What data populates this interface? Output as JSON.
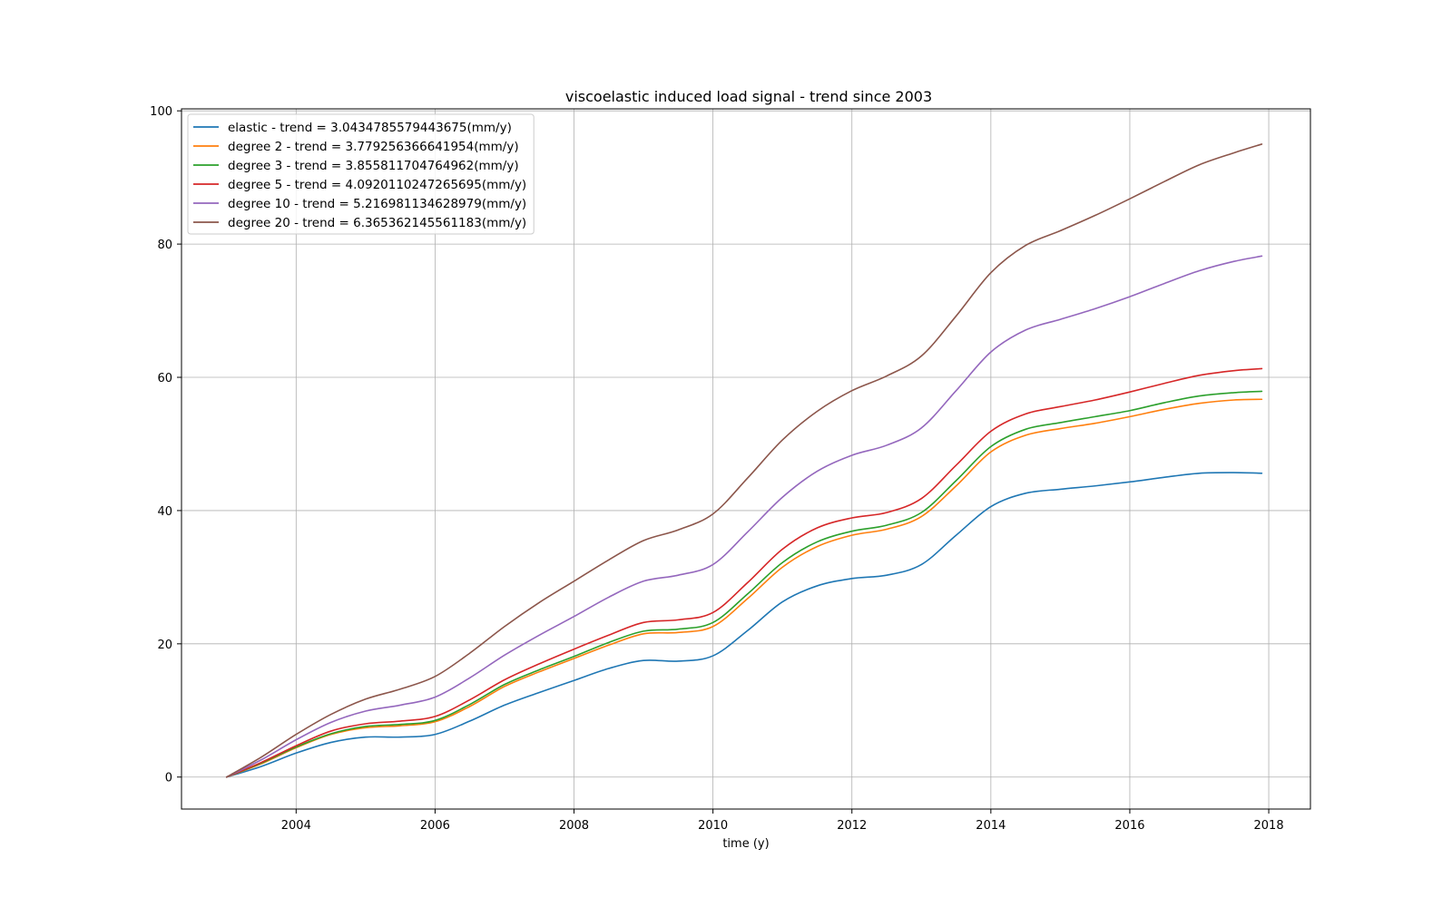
{
  "chart_data": {
    "type": "line",
    "title": "viscoelastic induced load signal - trend since 2003",
    "xlabel": "time (y)",
    "ylabel": "",
    "xlim": [
      2002.35,
      2018.6
    ],
    "ylim": [
      -4.8,
      100.3
    ],
    "xticks": [
      2004,
      2006,
      2008,
      2010,
      2012,
      2014,
      2016,
      2018
    ],
    "yticks": [
      0,
      20,
      40,
      60,
      80,
      100
    ],
    "grid": true,
    "legend_position": "top-left",
    "x": [
      2003.0,
      2003.5,
      2004.0,
      2004.5,
      2005.0,
      2005.5,
      2006.0,
      2006.5,
      2007.0,
      2007.5,
      2008.0,
      2008.5,
      2009.0,
      2009.5,
      2010.0,
      2010.5,
      2011.0,
      2011.5,
      2012.0,
      2012.5,
      2013.0,
      2013.5,
      2014.0,
      2014.5,
      2015.0,
      2015.5,
      2016.0,
      2016.5,
      2017.0,
      2017.5,
      2017.9
    ],
    "series": [
      {
        "name": "elastic - trend = 3.0434785579443675(mm/y)",
        "color": "#1f77b4",
        "values": [
          0,
          1.6,
          3.6,
          5.2,
          6.0,
          6.0,
          6.4,
          8.4,
          10.8,
          12.7,
          14.5,
          16.3,
          17.5,
          17.4,
          18.2,
          22.0,
          26.3,
          28.7,
          29.8,
          30.3,
          31.9,
          36.3,
          40.6,
          42.6,
          43.2,
          43.7,
          44.3,
          45.0,
          45.6,
          45.7,
          45.6
        ]
      },
      {
        "name": "degree 2 - trend = 3.779256366641954(mm/y)",
        "color": "#ff7f0e",
        "values": [
          0,
          2.0,
          4.4,
          6.4,
          7.4,
          7.7,
          8.3,
          10.6,
          13.6,
          15.8,
          17.8,
          19.8,
          21.5,
          21.7,
          22.6,
          26.8,
          31.5,
          34.6,
          36.3,
          37.2,
          39.1,
          43.7,
          48.8,
          51.3,
          52.3,
          53.1,
          54.1,
          55.2,
          56.1,
          56.6,
          56.7
        ]
      },
      {
        "name": "degree 3 - trend = 3.855811704764962(mm/y)",
        "color": "#2ca02c",
        "values": [
          0,
          2.1,
          4.5,
          6.5,
          7.6,
          7.9,
          8.5,
          10.9,
          13.9,
          16.1,
          18.1,
          20.2,
          21.9,
          22.2,
          23.2,
          27.5,
          32.2,
          35.3,
          36.9,
          37.8,
          39.7,
          44.5,
          49.6,
          52.2,
          53.2,
          54.1,
          55.0,
          56.2,
          57.2,
          57.7,
          57.9
        ]
      },
      {
        "name": "degree 5 - trend = 4.0920110247265695(mm/y)",
        "color": "#d62728",
        "values": [
          0,
          2.2,
          4.7,
          6.9,
          8.0,
          8.4,
          9.1,
          11.6,
          14.6,
          17.0,
          19.2,
          21.3,
          23.2,
          23.6,
          24.7,
          29.2,
          34.2,
          37.4,
          38.9,
          39.7,
          41.8,
          46.8,
          51.9,
          54.5,
          55.6,
          56.6,
          57.8,
          59.1,
          60.3,
          61.0,
          61.3
        ]
      },
      {
        "name": "degree 10 - trend = 5.216981134628979(mm/y)",
        "color": "#9467bd",
        "values": [
          0,
          2.6,
          5.6,
          8.2,
          9.9,
          10.8,
          12.0,
          14.9,
          18.3,
          21.3,
          24.1,
          27.0,
          29.4,
          30.3,
          31.9,
          36.8,
          42.0,
          45.9,
          48.3,
          49.8,
          52.4,
          58.0,
          63.8,
          67.1,
          68.7,
          70.3,
          72.1,
          74.1,
          76.0,
          77.4,
          78.2
        ]
      },
      {
        "name": "degree 20 - trend = 6.365362145561183(mm/y)",
        "color": "#8c564b",
        "values": [
          0,
          3.0,
          6.4,
          9.4,
          11.7,
          13.2,
          15.1,
          18.6,
          22.6,
          26.2,
          29.4,
          32.6,
          35.5,
          37.1,
          39.5,
          44.9,
          50.6,
          54.9,
          58.0,
          60.2,
          63.2,
          69.2,
          75.7,
          79.8,
          82.0,
          84.3,
          86.8,
          89.4,
          91.9,
          93.7,
          95.0
        ]
      }
    ]
  }
}
